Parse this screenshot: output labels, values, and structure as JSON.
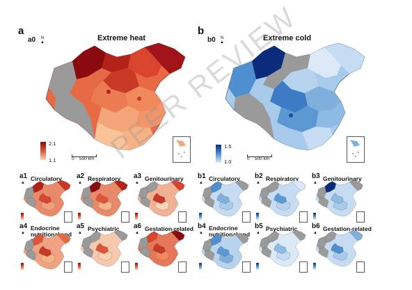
{
  "panels": {
    "a": {
      "letter": "a",
      "sub": "a0",
      "title": "Extreme heat",
      "legend_max": "2.1",
      "legend_min": "1.1",
      "scale": "500 km",
      "scale_zero": "0"
    },
    "b": {
      "letter": "b",
      "sub": "b0",
      "title": "Extreme cold",
      "legend_max": "1.5",
      "legend_min": "1.0",
      "scale": "500 km",
      "scale_zero": "0"
    }
  },
  "north_label": "N",
  "small_heat": [
    {
      "id": "a1",
      "title": "Circulatory"
    },
    {
      "id": "a2",
      "title": "Respiratory"
    },
    {
      "id": "a3",
      "title": "Genitourinary"
    },
    {
      "id": "a4",
      "title": "Endocrine nutritional and metabolic"
    },
    {
      "id": "a5",
      "title": "Psychiatric"
    },
    {
      "id": "a6",
      "title": "Gestation-related"
    }
  ],
  "small_cold": [
    {
      "id": "b1",
      "title": "Circulatory"
    },
    {
      "id": "b2",
      "title": "Respiratory"
    },
    {
      "id": "b3",
      "title": "Genitourinary"
    },
    {
      "id": "b4",
      "title": "Endocrine nutritional and metabolic"
    },
    {
      "id": "b5",
      "title": "Psychiatric"
    },
    {
      "id": "b6",
      "title": "Gestation-related"
    }
  ],
  "colors": {
    "heat_dark": "#8b0a10",
    "heat_mid": "#e0553a",
    "heat_light": "#fbd3b4",
    "cold_dark": "#0b2c7a",
    "cold_mid": "#4f8fcf",
    "cold_light": "#dceaf7",
    "nodata": "#9a9a9a"
  },
  "watermark": "PEER REVIEW"
}
